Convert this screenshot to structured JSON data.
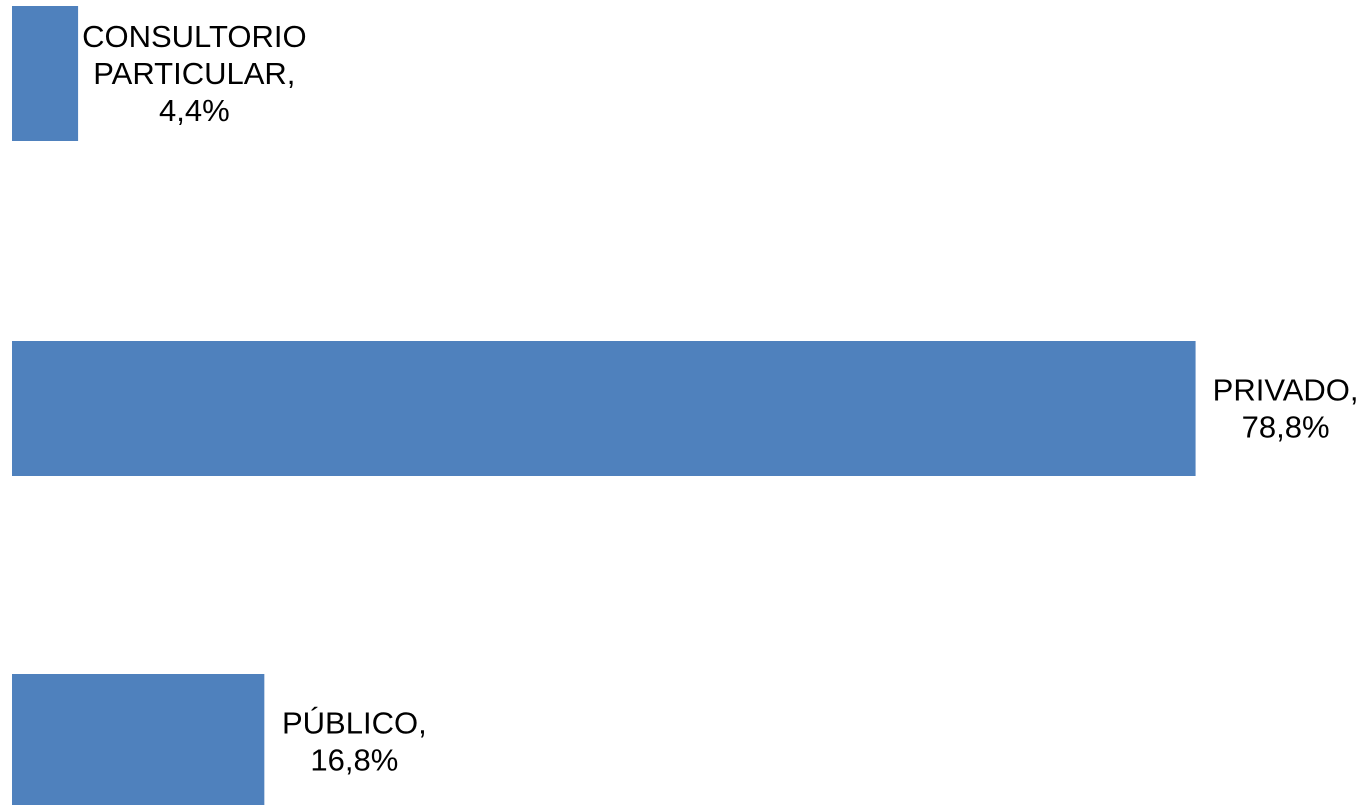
{
  "chart_data": {
    "type": "bar",
    "orientation": "horizontal",
    "categories": [
      "CONSULTORIO PARTICULAR",
      "PRIVADO",
      "PÚBLICO"
    ],
    "values": [
      4.4,
      78.8,
      16.8
    ],
    "value_unit": "%",
    "data_labels": [
      [
        "CONSULTORIO",
        "PARTICULAR,",
        "4,4%"
      ],
      [
        "PRIVADO,",
        "78,8%"
      ],
      [
        "PÚBLICO,",
        "16,8%"
      ]
    ],
    "bar_color": "#4f81bd",
    "title": "",
    "xlabel": "",
    "ylabel": "",
    "grid": false,
    "legend": false
  }
}
